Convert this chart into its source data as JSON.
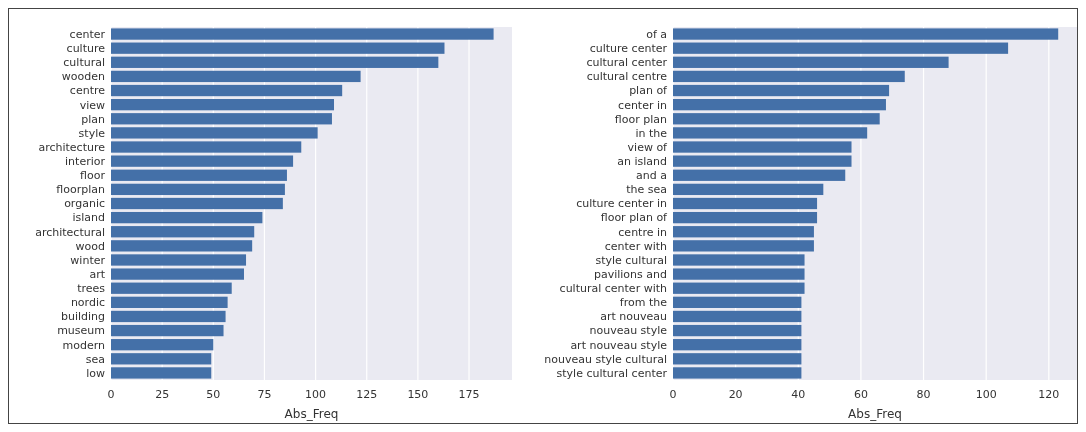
{
  "chart_data": [
    {
      "type": "bar",
      "orientation": "horizontal",
      "xlabel": "Abs_Freq",
      "color": "#4470a8",
      "grid": "x",
      "categories": [
        "center",
        "culture",
        "cultural",
        "wooden",
        "centre",
        "view",
        "plan",
        "style",
        "architecture",
        "interior",
        "floor",
        "floorplan",
        "organic",
        "island",
        "architectural",
        "wood",
        "winter",
        "art",
        "trees",
        "nordic",
        "building",
        "museum",
        "modern",
        "sea",
        "low"
      ],
      "values": [
        187,
        163,
        160,
        122,
        113,
        109,
        108,
        101,
        93,
        89,
        86,
        85,
        84,
        74,
        70,
        69,
        66,
        65,
        59,
        57,
        56,
        55,
        50,
        49,
        49
      ],
      "xlim": [
        0,
        196
      ],
      "xticks": [
        0,
        25,
        50,
        75,
        100,
        125,
        150,
        175
      ]
    },
    {
      "type": "bar",
      "orientation": "horizontal",
      "xlabel": "Abs_Freq",
      "color": "#4470a8",
      "grid": "x",
      "categories": [
        "of a",
        "culture center",
        "cultural center",
        "cultural centre",
        "plan of",
        "center in",
        "floor plan",
        "in the",
        "view of",
        "an island",
        "and a",
        "the sea",
        "culture center in",
        "floor plan of",
        "centre in",
        "center with",
        "style cultural",
        "pavilions and",
        "cultural center with",
        "from the",
        "art nouveau",
        "nouveau style",
        "art nouveau style",
        "nouveau style cultural",
        "style cultural center"
      ],
      "values": [
        123,
        107,
        88,
        74,
        69,
        68,
        66,
        62,
        57,
        57,
        55,
        48,
        46,
        46,
        45,
        45,
        42,
        42,
        42,
        41,
        41,
        41,
        41,
        41,
        41
      ],
      "xlim": [
        0,
        129
      ],
      "xticks": [
        0,
        20,
        40,
        60,
        80,
        100,
        120
      ]
    }
  ]
}
